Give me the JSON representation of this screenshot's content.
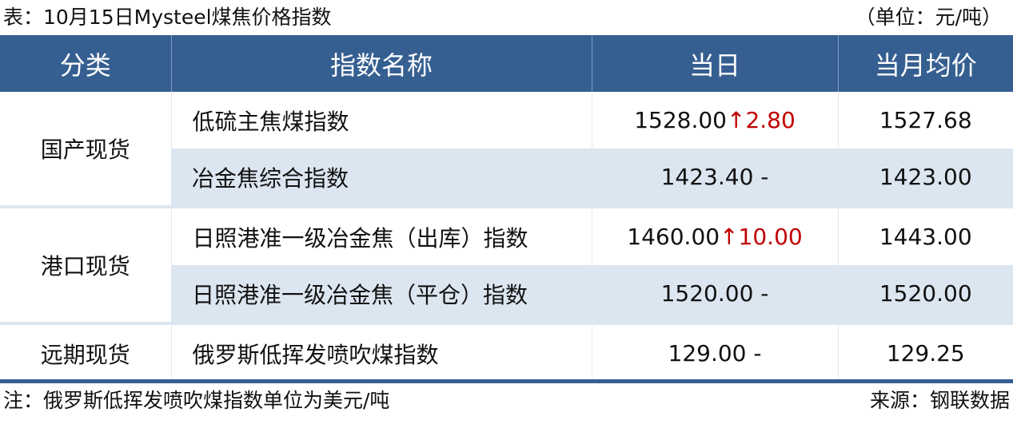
{
  "title": "表：10月15日Mysteel煤焦价格指数",
  "unit": "（单位：元/吨）",
  "headers": [
    "分类",
    "指数名称",
    "当日",
    "当月均价"
  ],
  "colors": {
    "header_bg": "#365f91",
    "alt_row": "#dce6f1",
    "up": "#c00000"
  },
  "rows": [
    {
      "category": "国产现货",
      "name": "低硫主焦煤指数",
      "today": "1528.00",
      "change_icon": "up-arrow",
      "change": "↑2.80",
      "avg": "1527.68"
    },
    {
      "name": "冶金焦综合指数",
      "today": "1423.40",
      "change": "-",
      "avg": "1423.00"
    },
    {
      "category": "港口现货",
      "name": "日照港准一级冶金焦（出库）指数",
      "today": "1460.00",
      "change_icon": "up-arrow",
      "change": "↑10.00",
      "avg": "1443.00"
    },
    {
      "name": "日照港准一级冶金焦（平仓）指数",
      "today": "1520.00",
      "change": "-",
      "avg": "1520.00"
    },
    {
      "category": "远期现货",
      "name": "俄罗斯低挥发喷吹煤指数",
      "today": "129.00",
      "change": "-",
      "avg": "129.25"
    }
  ],
  "note": "注：俄罗斯低挥发喷吹煤指数单位为美元/吨",
  "source": "来源：钢联数据"
}
